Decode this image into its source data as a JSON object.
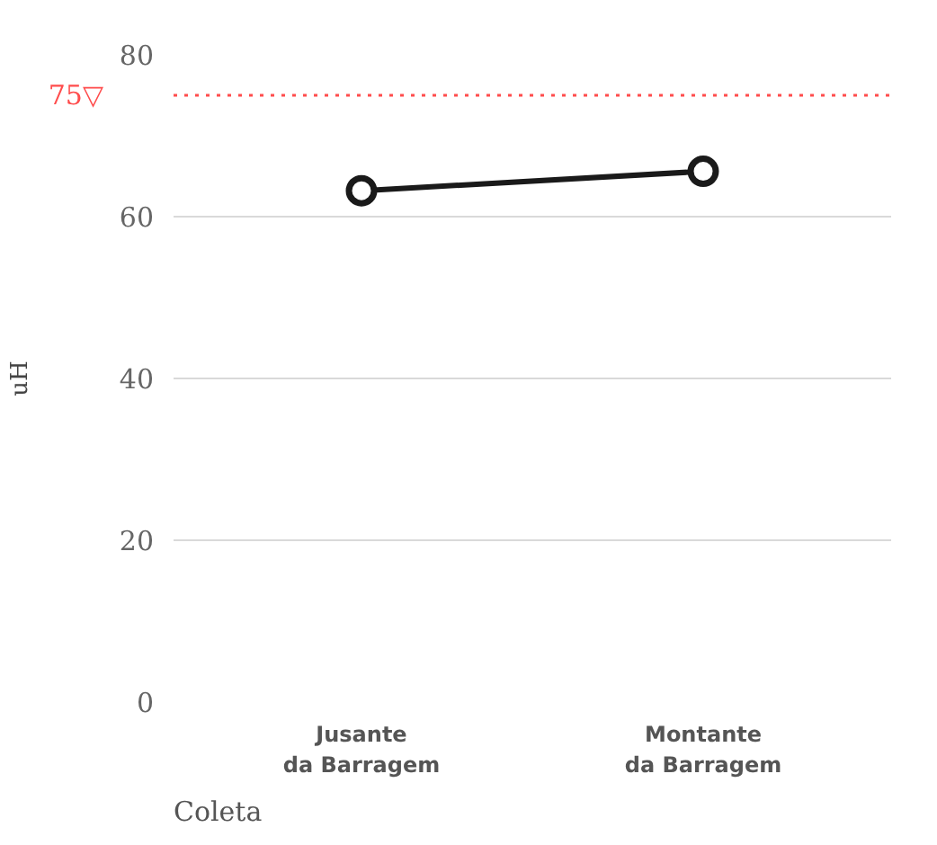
{
  "chart_data": {
    "type": "line",
    "categories": [
      "Jusante\nda Barragem",
      "Montante\nda Barragem"
    ],
    "series": [
      {
        "color": "#1a1a1a",
        "values": [
          63.2,
          65.6
        ]
      }
    ],
    "xlabel": "Coleta",
    "ylabel": "uH",
    "ylim": [
      0,
      80
    ],
    "yticks": [
      0,
      20,
      40,
      60,
      80
    ],
    "ref_lines": [
      {
        "axis": "y",
        "value": 75,
        "label": "75▽",
        "color": "#ff4d4d",
        "line_style": "dotted"
      }
    ],
    "grid": "y",
    "marker": "circle",
    "line_style": "solid"
  }
}
